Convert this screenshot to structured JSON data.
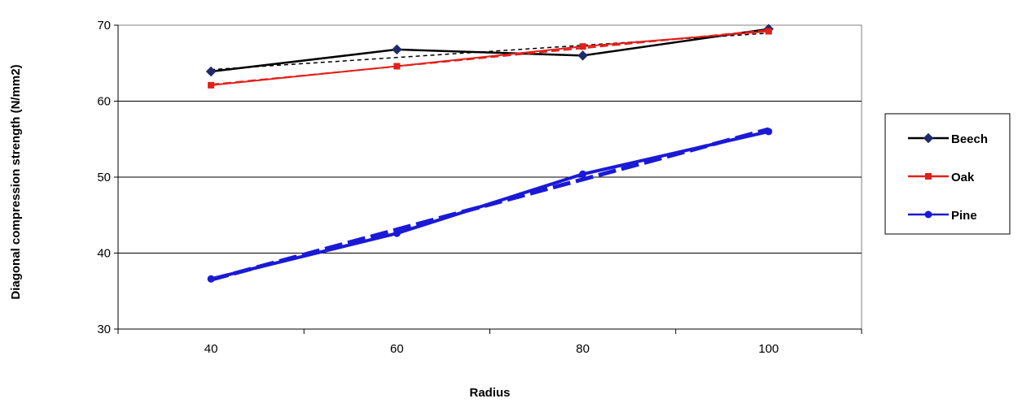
{
  "chart_data": {
    "type": "line",
    "title": "",
    "xlabel": "Radius",
    "ylabel": "Diagonal compression strength (N/mm2)",
    "x": [
      40,
      60,
      80,
      100
    ],
    "xlim": [
      30,
      110
    ],
    "ylim": [
      30,
      70
    ],
    "x_ticks": [
      40,
      60,
      80,
      100
    ],
    "y_ticks": [
      30,
      40,
      50,
      60,
      70
    ],
    "grid": "horizontal",
    "legend_position": "right",
    "series": [
      {
        "name": "Beech",
        "values": [
          63.9,
          66.8,
          66.0,
          69.5
        ],
        "color": "#000000",
        "marker": "diamond",
        "marker_color": "#1f2a6b",
        "trendline": true
      },
      {
        "name": "Oak",
        "values": [
          62.1,
          64.6,
          67.2,
          69.2
        ],
        "color": "#e0201b",
        "marker": "square",
        "marker_color": "#e0201b",
        "trendline": true
      },
      {
        "name": "Pine",
        "values": [
          36.6,
          42.6,
          50.4,
          56.0
        ],
        "color": "#1a1ad6",
        "marker": "circle",
        "marker_color": "#1a1ad6",
        "trendline": true
      }
    ]
  }
}
